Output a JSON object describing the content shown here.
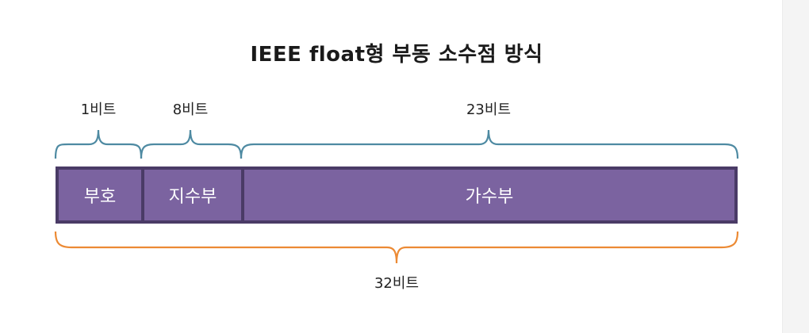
{
  "title": "IEEE float형 부동 소수점 방식",
  "bits": {
    "sign": "1비트",
    "exponent": "8비트",
    "mantissa": "23비트",
    "total": "32비트"
  },
  "fields": {
    "sign": "부호",
    "exponent": "지수부",
    "mantissa": "가수부"
  },
  "colors": {
    "field_fill": "#7b63a0",
    "field_border": "#4a3b66",
    "upper_brace": "#4e8aa2",
    "lower_brace": "#ec8a34"
  }
}
